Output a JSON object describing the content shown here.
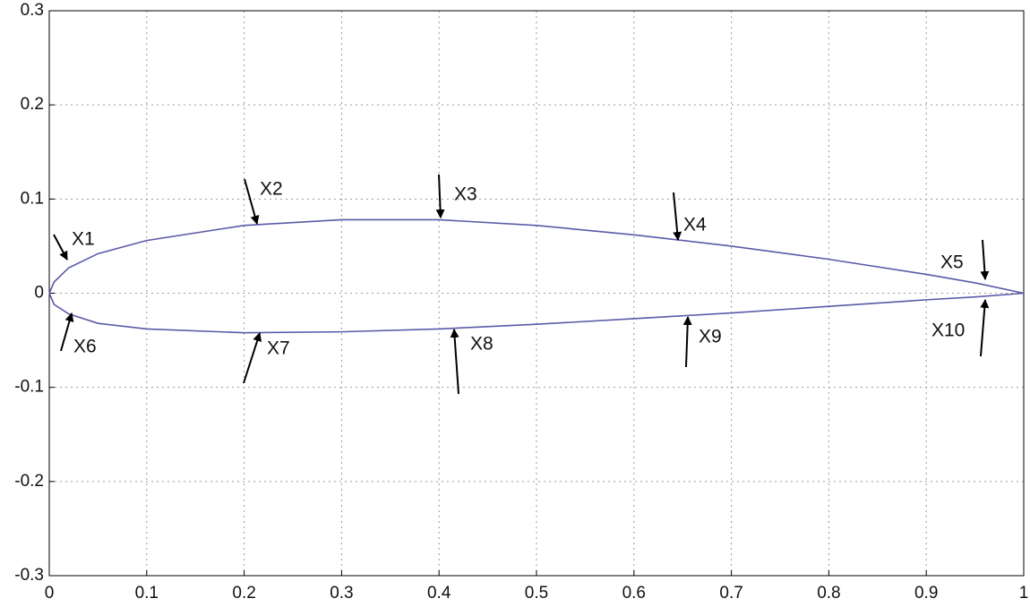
{
  "chart_data": {
    "type": "line",
    "x": [
      0,
      0.005,
      0.02,
      0.05,
      0.1,
      0.2,
      0.3,
      0.4,
      0.5,
      0.6,
      0.7,
      0.8,
      0.9,
      0.95,
      1
    ],
    "series": [
      {
        "color": "#5a5aa8",
        "values": [
          0,
          0.012,
          0.027,
          0.042,
          0.056,
          0.072,
          0.078,
          0.078,
          0.072,
          0.062,
          0.05,
          0.036,
          0.02,
          0.011,
          0
        ]
      },
      {
        "color": "#5a5aa8",
        "values": [
          0,
          -0.012,
          -0.022,
          -0.032,
          -0.038,
          -0.042,
          -0.041,
          -0.038,
          -0.033,
          -0.027,
          -0.021,
          -0.014,
          -0.007,
          -0.004,
          0
        ]
      }
    ],
    "xlim": [
      0,
      1
    ],
    "xticks": [
      0,
      0.1,
      0.2,
      0.3,
      0.4,
      0.5,
      0.6,
      0.7,
      0.8,
      0.9,
      1
    ],
    "ylim": [
      -0.3,
      0.3
    ],
    "yticks": [
      -0.3,
      -0.2,
      -0.1,
      0,
      0.1,
      0.2,
      0.3
    ],
    "grid": true,
    "annotations": [
      "X1",
      "X2",
      "X3",
      "X4",
      "X5",
      "X6",
      "X7",
      "X8",
      "X9",
      "X10"
    ]
  }
}
